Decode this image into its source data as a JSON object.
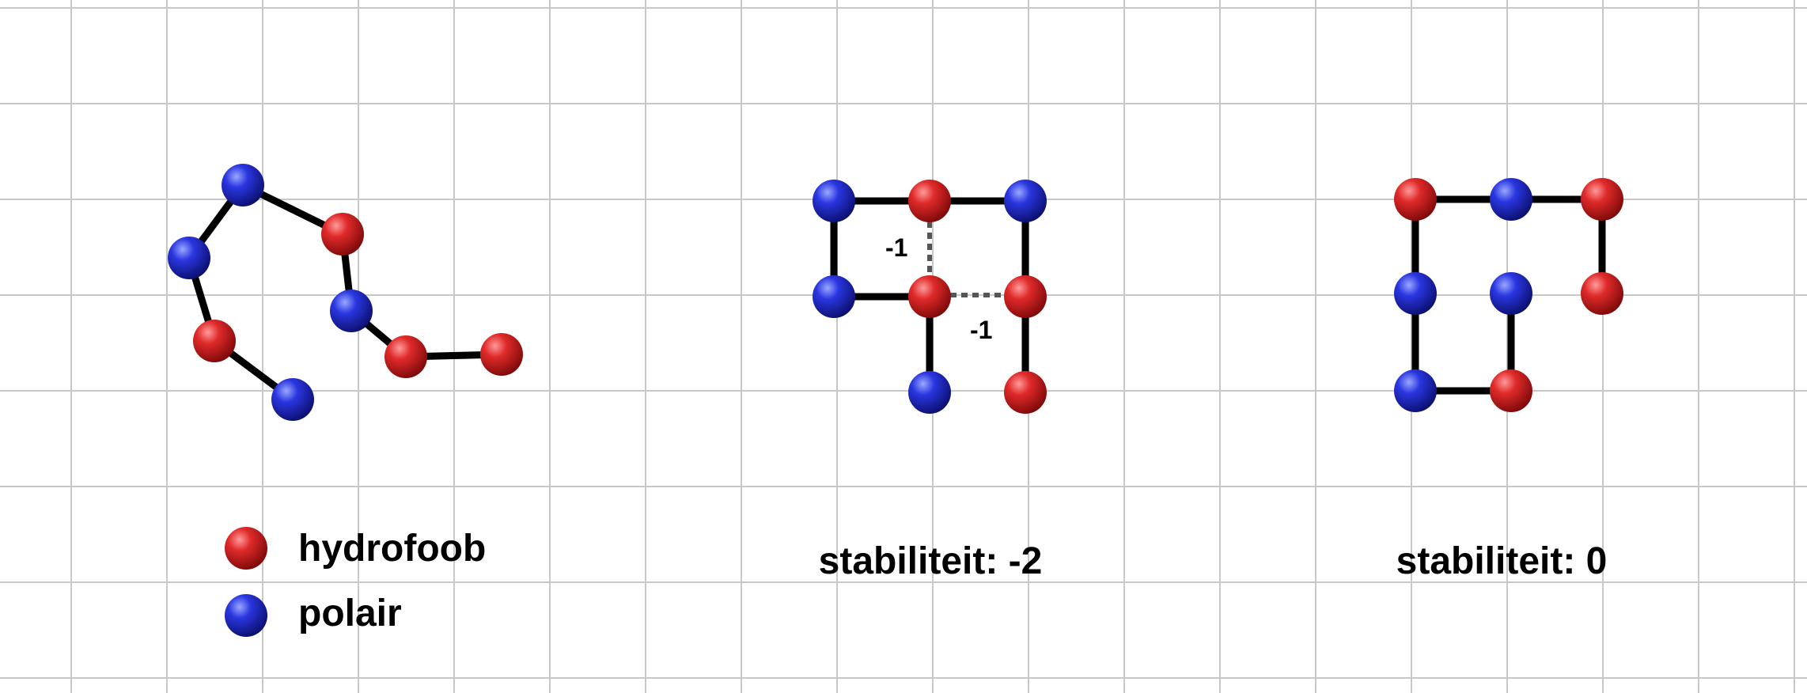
{
  "colors": {
    "hydrophobic": "#c01818",
    "polar": "#1c22b8",
    "background": "#ffffff",
    "grid": "#c8c8c8"
  },
  "legend": {
    "hydrophobic_label": "hydrofoob",
    "polar_label": "polair"
  },
  "structures": [
    {
      "name": "unfolded",
      "residues": [
        "P",
        "P",
        "H",
        "P",
        "H",
        "P",
        "H",
        "H"
      ],
      "caption": ""
    },
    {
      "name": "fold-a",
      "residues": [
        "H",
        "P",
        "P",
        "H",
        "P",
        "H",
        "H",
        "P"
      ],
      "contacts": [
        "-1",
        "-1"
      ],
      "caption": "stabiliteit: -2"
    },
    {
      "name": "fold-b",
      "residues": [
        "P",
        "P",
        "H",
        "P",
        "H",
        "H",
        "P",
        "H"
      ],
      "caption": "stabiliteit: 0"
    }
  ]
}
